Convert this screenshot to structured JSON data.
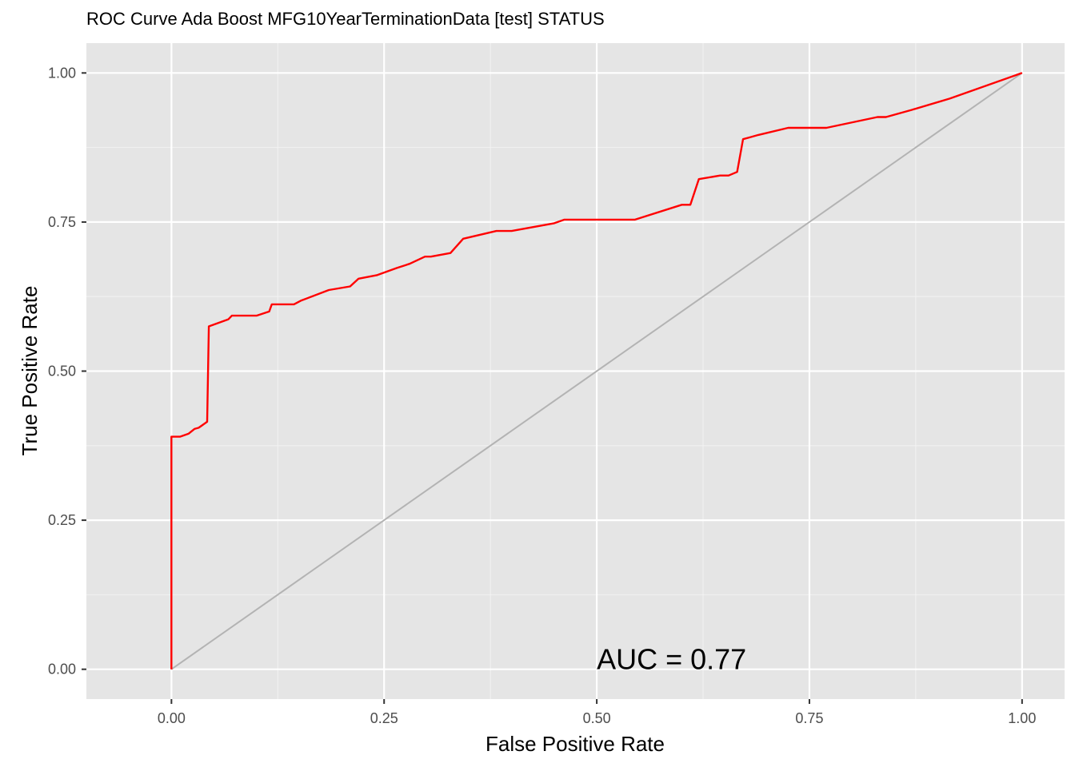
{
  "chart_data": {
    "type": "line",
    "title": "ROC Curve Ada Boost MFG10YearTerminationData [test] STATUS",
    "xlabel": "False Positive Rate",
    "ylabel": "True Positive Rate",
    "xlim": [
      -0.1,
      1.05
    ],
    "ylim": [
      -0.05,
      1.05
    ],
    "x_ticks": [
      "0.00",
      "0.25",
      "0.50",
      "0.75",
      "1.00"
    ],
    "y_ticks": [
      "0.00",
      "0.25",
      "0.50",
      "0.75",
      "1.00"
    ],
    "grid": true,
    "annotation": {
      "text": "AUC = 0.77",
      "x": 0.5,
      "y": 0.0
    },
    "series": [
      {
        "color": "#ff0000",
        "x": [
          0.0,
          0.0,
          0.01,
          0.02,
          0.027,
          0.032,
          0.042,
          0.044,
          0.067,
          0.071,
          0.1,
          0.115,
          0.118,
          0.144,
          0.152,
          0.185,
          0.21,
          0.22,
          0.242,
          0.265,
          0.28,
          0.298,
          0.305,
          0.328,
          0.343,
          0.382,
          0.4,
          0.45,
          0.462,
          0.545,
          0.6,
          0.61,
          0.62,
          0.645,
          0.655,
          0.665,
          0.672,
          0.68,
          0.69,
          0.725,
          0.77,
          0.83,
          0.84,
          0.87,
          0.915,
          1.0
        ],
        "y": [
          0.0,
          0.39,
          0.39,
          0.395,
          0.403,
          0.405,
          0.415,
          0.575,
          0.587,
          0.593,
          0.593,
          0.6,
          0.612,
          0.612,
          0.618,
          0.636,
          0.642,
          0.655,
          0.661,
          0.673,
          0.68,
          0.692,
          0.692,
          0.698,
          0.722,
          0.735,
          0.735,
          0.748,
          0.754,
          0.754,
          0.779,
          0.779,
          0.822,
          0.828,
          0.828,
          0.834,
          0.889,
          0.892,
          0.896,
          0.908,
          0.908,
          0.926,
          0.926,
          0.938,
          0.957,
          1.0
        ]
      },
      {
        "color": "#b3b3b3",
        "x": [
          0.0,
          1.0
        ],
        "y": [
          0.0,
          1.0
        ]
      }
    ]
  }
}
